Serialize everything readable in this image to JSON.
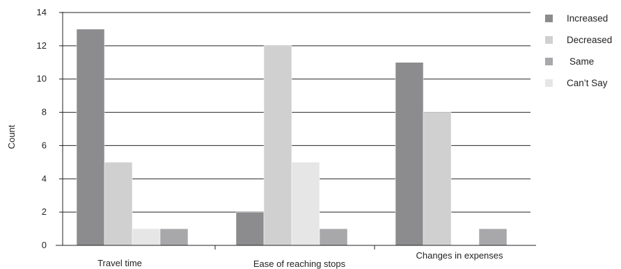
{
  "chart_data": {
    "type": "bar",
    "title": "",
    "xlabel": "",
    "ylabel": "Count",
    "ylim": [
      0,
      14
    ],
    "yticks": [
      0,
      2,
      4,
      6,
      8,
      10,
      12,
      14
    ],
    "grid": true,
    "legend_position": "top-right",
    "categories": [
      "Travel time",
      "Ease of reaching stops",
      "Changes in expenses"
    ],
    "series": [
      {
        "name": "Increased",
        "color": "#8c8c8e",
        "values": [
          13,
          2,
          11
        ]
      },
      {
        "name": "Decreased",
        "color": "#d0d0d1",
        "values": [
          5,
          12,
          8
        ]
      },
      {
        "name": "Can’t Say",
        "color": "#e6e6e7",
        "values": [
          1,
          5,
          0
        ]
      },
      {
        "name": "Same",
        "color": "#a8a8aa",
        "values": [
          1,
          1,
          1
        ]
      }
    ],
    "legend_order": [
      "Increased",
      "Decreased",
      "Same",
      "Can’t Say"
    ]
  }
}
